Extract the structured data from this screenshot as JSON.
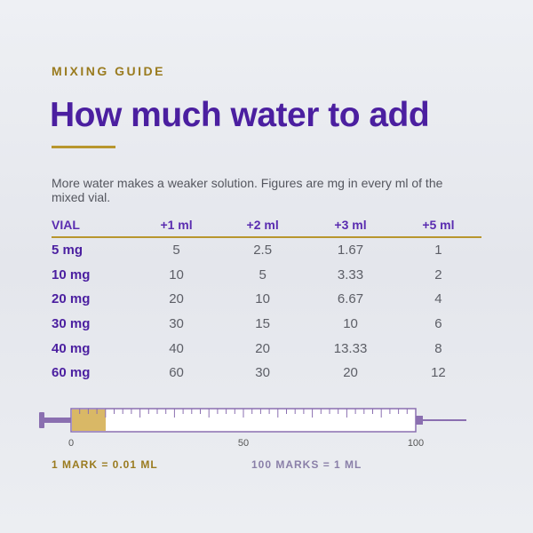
{
  "header": {
    "eyebrow": "MIXING GUIDE",
    "title": "How much water to add",
    "description": "More water makes a weaker solution. Figures are mg in every ml of the mixed vial."
  },
  "table": {
    "columns": [
      "VIAL",
      "+1 ml",
      "+2 ml",
      "+3 ml",
      "+5 ml"
    ],
    "rows": [
      [
        "5 mg",
        5,
        2.5,
        1.67,
        1
      ],
      [
        "10 mg",
        10,
        5,
        3.33,
        2
      ],
      [
        "20 mg",
        20,
        10,
        6.67,
        4
      ],
      [
        "30 mg",
        30,
        15,
        10,
        6
      ],
      [
        "40 mg",
        40,
        20,
        13.33,
        8
      ],
      [
        "60 mg",
        60,
        30,
        20,
        12
      ]
    ]
  },
  "syringe": {
    "scale_labels": [
      0,
      50,
      100
    ],
    "note_left": "1 MARK = 0.01 ML",
    "note_right": "100 MARKS = 1 ML"
  }
}
